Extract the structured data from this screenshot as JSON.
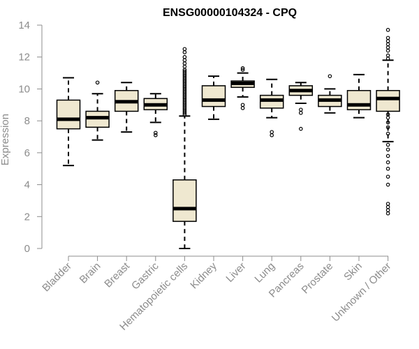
{
  "chart_data": {
    "type": "box",
    "title": "ENSG00000104324 - CPQ",
    "xlabel": "",
    "ylabel": "Expression",
    "ylim": [
      0,
      14
    ],
    "yticks": [
      0,
      2,
      4,
      6,
      8,
      10,
      12,
      14
    ],
    "colors": {
      "box_fill": "#efe8d0",
      "median": "#000000",
      "axis": "#8c8c8c"
    },
    "categories": [
      "Bladder",
      "Brain",
      "Breast",
      "Gastric",
      "Hematopoietic cells",
      "Kidney",
      "Liver",
      "Lung",
      "Pancreas",
      "Prostate",
      "Skin",
      "Unknown / Other"
    ],
    "boxes": [
      {
        "category": "Bladder",
        "whisker_low": 5.2,
        "q1": 7.5,
        "median": 8.1,
        "q3": 9.3,
        "whisker_high": 10.7,
        "outliers": []
      },
      {
        "category": "Brain",
        "whisker_low": 6.8,
        "q1": 7.6,
        "median": 8.2,
        "q3": 8.6,
        "whisker_high": 9.7,
        "outliers": [
          10.4
        ]
      },
      {
        "category": "Breast",
        "whisker_low": 7.3,
        "q1": 8.6,
        "median": 9.2,
        "q3": 9.9,
        "whisker_high": 10.4,
        "outliers": []
      },
      {
        "category": "Gastric",
        "whisker_low": 7.9,
        "q1": 8.7,
        "median": 9.0,
        "q3": 9.4,
        "whisker_high": 9.7,
        "outliers": [
          7.1,
          7.25
        ]
      },
      {
        "category": "Hematopoietic cells",
        "whisker_low": 0.0,
        "q1": 1.7,
        "median": 2.5,
        "q3": 4.3,
        "whisker_high": 8.3,
        "outliers": [
          8.4,
          8.5,
          8.6,
          8.7,
          8.8,
          8.9,
          9.0,
          9.1,
          9.2,
          9.3,
          9.4,
          9.5,
          9.6,
          9.7,
          9.8,
          9.9,
          10.0,
          10.1,
          10.2,
          10.3,
          10.4,
          10.5,
          10.6,
          10.7,
          10.8,
          10.9,
          11.0,
          11.1,
          11.2,
          11.4,
          11.6,
          11.8,
          12.0,
          12.3,
          12.5
        ]
      },
      {
        "category": "Kidney",
        "whisker_low": 8.1,
        "q1": 8.9,
        "median": 9.3,
        "q3": 10.2,
        "whisker_high": 10.8,
        "outliers": []
      },
      {
        "category": "Liver",
        "whisker_low": 9.5,
        "q1": 10.1,
        "median": 10.35,
        "q3": 10.5,
        "whisker_high": 11.0,
        "outliers": [
          8.8,
          9.0,
          11.2,
          11.3
        ]
      },
      {
        "category": "Lung",
        "whisker_low": 8.2,
        "q1": 8.8,
        "median": 9.3,
        "q3": 9.6,
        "whisker_high": 10.6,
        "outliers": [
          7.1,
          7.3
        ]
      },
      {
        "category": "Pancreas",
        "whisker_low": 9.1,
        "q1": 9.6,
        "median": 9.9,
        "q3": 10.2,
        "whisker_high": 10.4,
        "outliers": [
          7.5,
          8.5,
          8.7
        ]
      },
      {
        "category": "Prostate",
        "whisker_low": 8.5,
        "q1": 8.9,
        "median": 9.3,
        "q3": 9.6,
        "whisker_high": 10.0,
        "outliers": [
          10.8
        ]
      },
      {
        "category": "Skin",
        "whisker_low": 8.2,
        "q1": 8.7,
        "median": 9.0,
        "q3": 9.9,
        "whisker_high": 10.9,
        "outliers": []
      },
      {
        "category": "Unknown / Other",
        "whisker_low": 6.7,
        "q1": 8.6,
        "median": 9.4,
        "q3": 9.9,
        "whisker_high": 11.8,
        "outliers": [
          2.2,
          2.4,
          2.6,
          2.8,
          4.0,
          4.5,
          5.0,
          5.4,
          5.8,
          6.2,
          6.5,
          7.2,
          7.6,
          7.9,
          8.2,
          8.4,
          11.9,
          12.1,
          12.4,
          12.6,
          12.8,
          13.0,
          13.2,
          13.7
        ]
      }
    ]
  }
}
